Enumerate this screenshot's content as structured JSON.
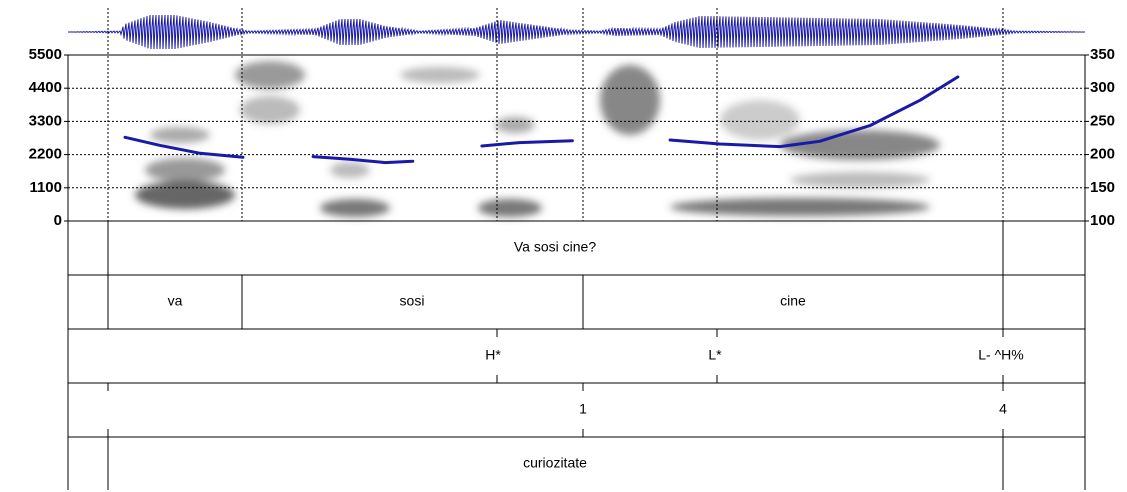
{
  "chart_data": {
    "type": "line",
    "ylim": [
      0,
      5500
    ],
    "yticks": [
      0,
      1100,
      2200,
      3300,
      4400,
      5500
    ],
    "y2lim": [
      100,
      350
    ],
    "y2ticks": [
      100,
      150,
      200,
      250,
      300,
      350
    ],
    "xlim": [
      0,
      1
    ],
    "x": [
      0.056,
      0.09,
      0.13,
      0.172,
      null,
      0.241,
      0.277,
      0.312,
      0.339,
      null,
      0.407,
      0.444,
      0.496,
      null,
      0.592,
      0.641,
      0.7,
      0.739,
      0.789,
      0.838,
      0.875
    ],
    "series": [
      {
        "color": "#1a1aa8",
        "axis": "y2",
        "values": [
          226,
          214,
          202,
          196,
          null,
          197,
          193,
          188,
          190,
          null,
          213,
          218,
          221,
          null,
          222,
          216,
          212,
          220,
          244,
          282,
          317
        ]
      }
    ],
    "grid": true
  },
  "tiers": {
    "phrase": {
      "text": "Va sosi cine?"
    },
    "words": [
      "va",
      "sosi",
      "cine"
    ],
    "tones": [
      "H*",
      "L*",
      "L- ^H%"
    ],
    "breaks": [
      "1",
      "4"
    ],
    "meaning": {
      "text": "curiozitate"
    }
  }
}
